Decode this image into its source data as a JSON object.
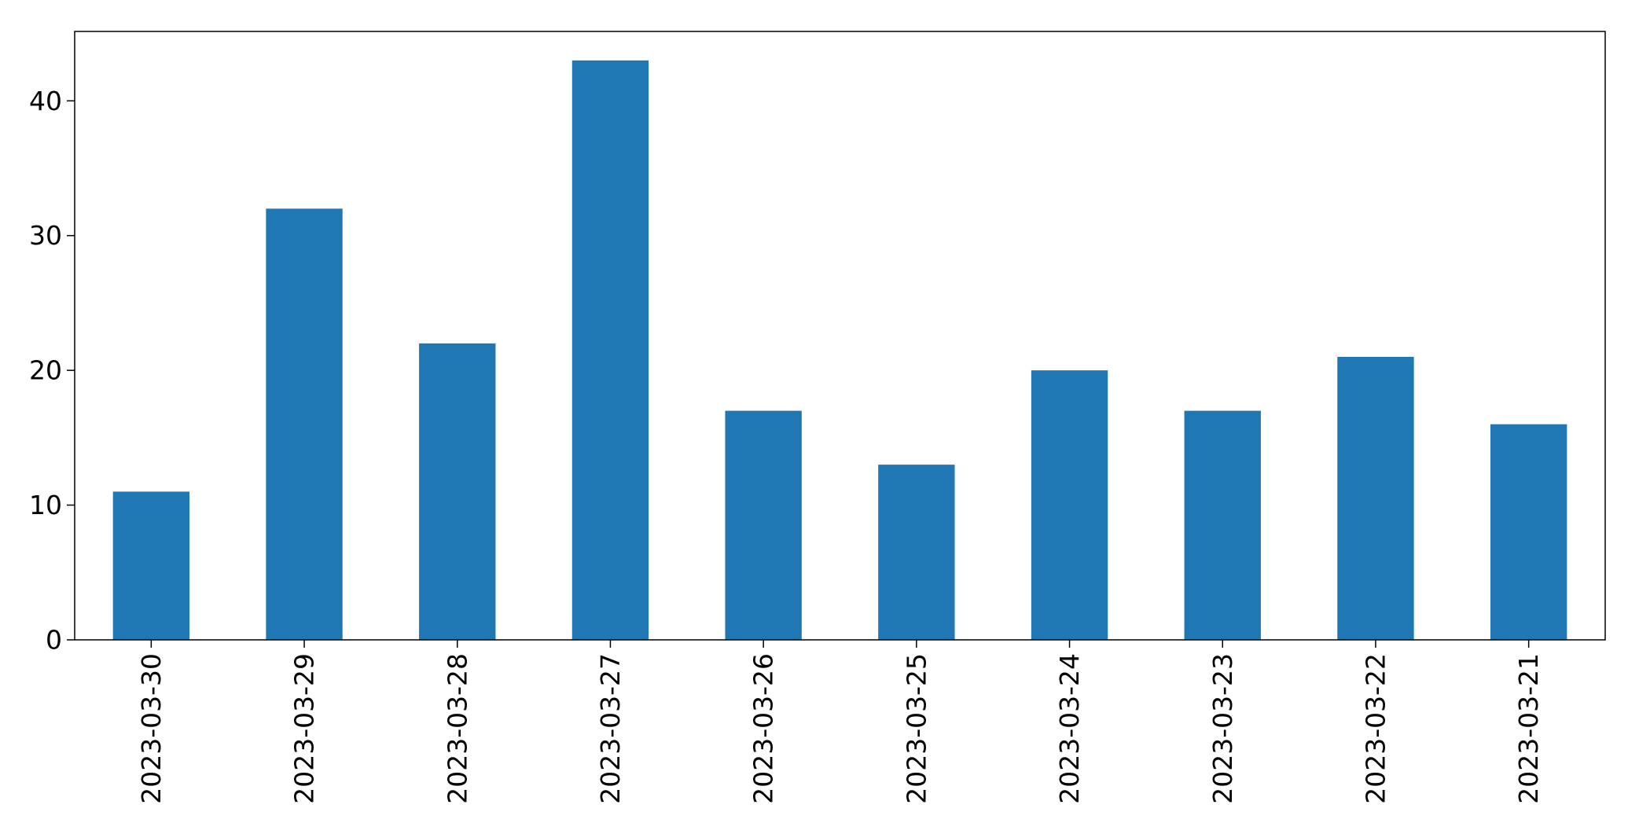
{
  "chart_data": {
    "type": "bar",
    "title": "",
    "xlabel": "",
    "ylabel": "",
    "categories": [
      "2023-03-30",
      "2023-03-29",
      "2023-03-28",
      "2023-03-27",
      "2023-03-26",
      "2023-03-25",
      "2023-03-24",
      "2023-03-23",
      "2023-03-22",
      "2023-03-21"
    ],
    "values": [
      11,
      32,
      22,
      43,
      17,
      13,
      20,
      17,
      21,
      16
    ],
    "ylim": [
      0,
      45.15
    ],
    "yticks": [
      0,
      10,
      20,
      30,
      40
    ],
    "ytick_labels": [
      "0",
      "10",
      "20",
      "30",
      "40"
    ],
    "bar_color": "#1f77b4",
    "grid": false,
    "legend": "none"
  }
}
